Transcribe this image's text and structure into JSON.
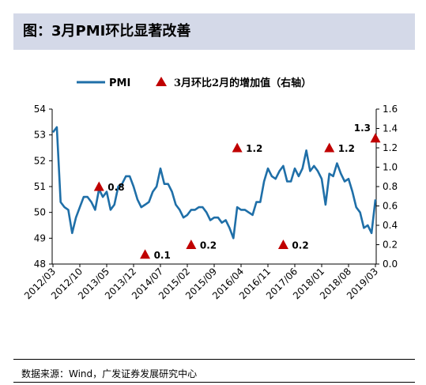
{
  "header": {
    "title": "图：3月PMI环比显著改善"
  },
  "footer": {
    "source": "数据来源：Wind，广发证券发展研究中心"
  },
  "colors": {
    "line": "#1f6fa8",
    "marker": "#c00000",
    "title_band": "#d4d9e8"
  },
  "chart_data": {
    "type": "line",
    "legend_position": "top",
    "grid": false,
    "x": [
      "2012/03",
      "2012/04",
      "2012/05",
      "2012/06",
      "2012/07",
      "2012/08",
      "2012/09",
      "2012/10",
      "2012/11",
      "2012/12",
      "2013/01",
      "2013/02",
      "2013/03",
      "2013/04",
      "2013/05",
      "2013/06",
      "2013/07",
      "2013/08",
      "2013/09",
      "2013/10",
      "2013/11",
      "2013/12",
      "2014/01",
      "2014/02",
      "2014/03",
      "2014/04",
      "2014/05",
      "2014/06",
      "2014/07",
      "2014/08",
      "2014/09",
      "2014/10",
      "2014/11",
      "2014/12",
      "2015/01",
      "2015/02",
      "2015/03",
      "2015/04",
      "2015/05",
      "2015/06",
      "2015/07",
      "2015/08",
      "2015/09",
      "2015/10",
      "2015/11",
      "2015/12",
      "2016/01",
      "2016/02",
      "2016/03",
      "2016/04",
      "2016/05",
      "2016/06",
      "2016/07",
      "2016/08",
      "2016/09",
      "2016/10",
      "2016/11",
      "2016/12",
      "2017/01",
      "2017/02",
      "2017/03",
      "2017/04",
      "2017/05",
      "2017/06",
      "2017/07",
      "2017/08",
      "2017/09",
      "2017/10",
      "2017/11",
      "2017/12",
      "2018/01",
      "2018/02",
      "2018/03",
      "2018/04",
      "2018/05",
      "2018/06",
      "2018/07",
      "2018/08",
      "2018/09",
      "2018/10",
      "2018/11",
      "2018/12",
      "2019/01",
      "2019/02",
      "2019/03"
    ],
    "x_tick_labels": [
      "2012/03",
      "2012/10",
      "2013/05",
      "2013/12",
      "2014/07",
      "2015/02",
      "2015/09",
      "2016/04",
      "2016/11",
      "2017/06",
      "2018/01",
      "2018/08",
      "2019/03"
    ],
    "series": [
      {
        "name": "PMI",
        "axis": "left",
        "values": [
          53.1,
          53.3,
          50.4,
          50.2,
          50.1,
          49.2,
          49.8,
          50.2,
          50.6,
          50.6,
          50.4,
          50.1,
          50.9,
          50.6,
          50.8,
          50.1,
          50.3,
          51.0,
          51.1,
          51.4,
          51.4,
          51.0,
          50.5,
          50.2,
          50.3,
          50.4,
          50.8,
          51.0,
          51.7,
          51.1,
          51.1,
          50.8,
          50.3,
          50.1,
          49.8,
          49.9,
          50.1,
          50.1,
          50.2,
          50.2,
          50.0,
          49.7,
          49.8,
          49.8,
          49.6,
          49.7,
          49.4,
          49.0,
          50.2,
          50.1,
          50.1,
          50.0,
          49.9,
          50.4,
          50.4,
          51.2,
          51.7,
          51.4,
          51.3,
          51.6,
          51.8,
          51.2,
          51.2,
          51.7,
          51.4,
          51.7,
          52.4,
          51.6,
          51.8,
          51.6,
          51.3,
          50.3,
          51.5,
          51.4,
          51.9,
          51.5,
          51.2,
          51.3,
          50.8,
          50.2,
          50.0,
          49.4,
          49.5,
          49.2,
          50.5
        ]
      },
      {
        "name": "3月环比2月的增加值（右轴）",
        "axis": "right",
        "type": "scatter",
        "marker": "triangle",
        "points": [
          {
            "x": "2013/03",
            "value": 0.8,
            "label": "0.8"
          },
          {
            "x": "2014/03",
            "value": 0.1,
            "label": "0.1"
          },
          {
            "x": "2015/03",
            "value": 0.2,
            "label": "0.2"
          },
          {
            "x": "2016/03",
            "value": 1.2,
            "label": "1.2"
          },
          {
            "x": "2017/03",
            "value": 0.2,
            "label": "0.2"
          },
          {
            "x": "2018/03",
            "value": 1.2,
            "label": "1.2"
          },
          {
            "x": "2019/03",
            "value": 1.3,
            "label": "1.3"
          }
        ]
      }
    ],
    "y_left": {
      "min": 48,
      "max": 54,
      "ticks": [
        "48",
        "49",
        "50",
        "51",
        "52",
        "53",
        "54"
      ]
    },
    "y_right": {
      "min": 0.0,
      "max": 1.6,
      "ticks": [
        "0.0",
        "0.2",
        "0.4",
        "0.6",
        "0.8",
        "1.0",
        "1.2",
        "1.4",
        "1.6"
      ]
    }
  }
}
